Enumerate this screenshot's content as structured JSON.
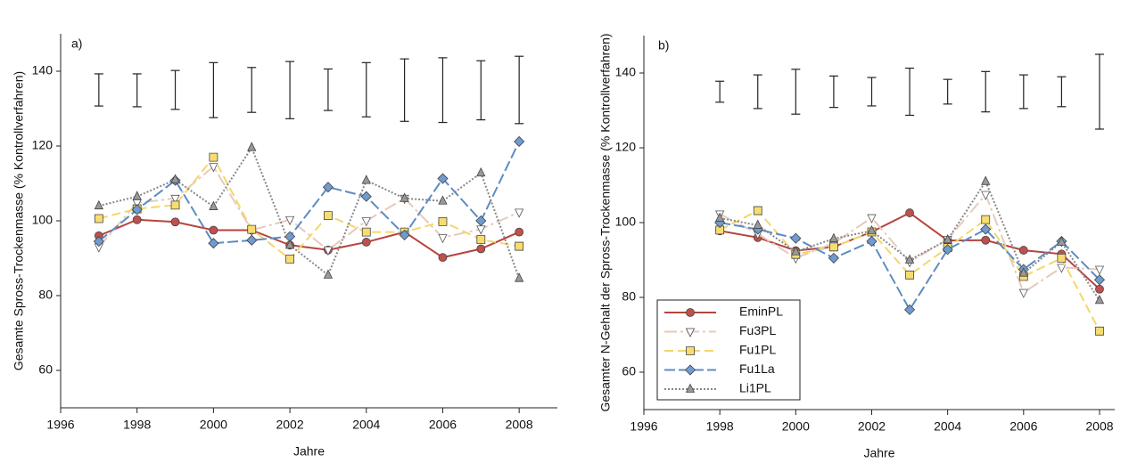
{
  "chart_data": [
    {
      "type": "line",
      "panel_label": "a)",
      "ylabel": "Gesamte Spross-Trockenmasse (% Kontrollverfahren)",
      "xlabel": "Jahre",
      "xlim": [
        1996,
        2009
      ],
      "xticks": [
        1996,
        1998,
        2000,
        2002,
        2004,
        2006,
        2008
      ],
      "ylim": [
        50,
        150
      ],
      "yticks": [
        60,
        80,
        100,
        120,
        140
      ],
      "x": [
        1997,
        1998,
        1999,
        2000,
        2001,
        2002,
        2003,
        2004,
        2005,
        2006,
        2007,
        2008
      ],
      "error_bars": {
        "low": [
          130.7,
          130.5,
          129.8,
          127.6,
          129,
          127.3,
          129.5,
          127.8,
          126.6,
          126.3,
          127,
          126
        ],
        "high": [
          139.3,
          139.3,
          140.2,
          142.3,
          141,
          142.6,
          140.6,
          142.3,
          143.3,
          143.6,
          142.8,
          144
        ]
      },
      "series": [
        {
          "color": "#b5443e",
          "marker": "circle",
          "fill": "#c0504d",
          "dash": "",
          "values": [
            96,
            100.3,
            99.7,
            97.5,
            97.5,
            93.5,
            92.2,
            94.3,
            97,
            90.2,
            92.5,
            97
          ]
        },
        {
          "color": "#e6cabd",
          "marker": "tri-down",
          "fill": "#ffffff",
          "dash": "14 4 3 4",
          "values": [
            93,
            104.8,
            106,
            114.5,
            97.5,
            100.3,
            92.2,
            100,
            106,
            95.5,
            97.8,
            102.3
          ]
        },
        {
          "color": "#f3d76a",
          "marker": "square",
          "fill": "#f7dd70",
          "dash": "10 5",
          "values": [
            100.6,
            103.2,
            104.2,
            117,
            97.7,
            89.8,
            101.4,
            97,
            97,
            99.8,
            95,
            93.2
          ]
        },
        {
          "color": "#5b8cc4",
          "marker": "diamond",
          "fill": "#6f9bd0",
          "dash": "12 4",
          "values": [
            94.5,
            103,
            110.8,
            94,
            94.8,
            95.8,
            109,
            106.5,
            96.2,
            111.3,
            100,
            121.2
          ]
        },
        {
          "color": "#888888",
          "marker": "tri-up",
          "fill": "#999999",
          "dash": "2 2",
          "values": [
            104,
            106.5,
            111,
            103.8,
            119.6,
            93.5,
            85.5,
            110.8,
            106,
            105.3,
            112.8,
            84.6
          ]
        }
      ]
    },
    {
      "type": "line",
      "panel_label": "b)",
      "ylabel": "Gesamter N-Gehalt der Spross-Trockenmasse (% Kontrollverfahren)",
      "xlabel": "Jahre",
      "xlim": [
        1996,
        2008.4
      ],
      "xticks": [
        1996,
        1998,
        2000,
        2002,
        2004,
        2006,
        2008
      ],
      "ylim": [
        50,
        150
      ],
      "yticks": [
        60,
        80,
        100,
        120,
        140
      ],
      "legend": "lower left",
      "x": [
        1998,
        1999,
        2000,
        2001,
        2002,
        2003,
        2004,
        2005,
        2006,
        2007,
        2008
      ],
      "error_bars": {
        "low": [
          132.2,
          130.5,
          129,
          130.8,
          131.2,
          128.7,
          131.7,
          129.6,
          130.5,
          131,
          125
        ],
        "high": [
          137.8,
          139.5,
          141,
          139.2,
          138.8,
          141.3,
          138.3,
          140.4,
          139.5,
          139,
          145
        ]
      },
      "series": [
        {
          "name": "EminPL",
          "color": "#b5443e",
          "marker": "circle",
          "fill": "#c0504d",
          "dash": "",
          "values": [
            97.8,
            96,
            92.5,
            93.5,
            97.5,
            102.6,
            95.2,
            95.3,
            92.6,
            91.6,
            82.2
          ]
        },
        {
          "name": "Fu3PL",
          "color": "#e6cabd",
          "marker": "tri-down",
          "fill": "#ffffff",
          "dash": "14 4 3 4",
          "values": [
            102.3,
            97,
            90.5,
            94.5,
            101.3,
            89.5,
            95.5,
            107.5,
            81.3,
            88,
            87.5
          ]
        },
        {
          "name": "Fu1PL",
          "color": "#f3d76a",
          "marker": "square",
          "fill": "#f7dd70",
          "dash": "10 5",
          "values": [
            98,
            103.2,
            91.5,
            93.5,
            97.5,
            86,
            93.3,
            100.8,
            85.6,
            90.5,
            71
          ]
        },
        {
          "name": "Fu1La",
          "color": "#5b8cc4",
          "marker": "diamond",
          "fill": "#6f9bd0",
          "dash": "12 4",
          "values": [
            100,
            98.2,
            95.8,
            90.5,
            95,
            76.7,
            92.8,
            98.2,
            87.5,
            95,
            84.7
          ]
        },
        {
          "name": "Li1PL",
          "color": "#888888",
          "marker": "tri-up",
          "fill": "#999999",
          "dash": "2 2",
          "values": [
            101.2,
            99.3,
            92.2,
            95.7,
            97.8,
            90,
            95.4,
            111,
            86.5,
            94.8,
            79.2
          ]
        }
      ]
    }
  ]
}
